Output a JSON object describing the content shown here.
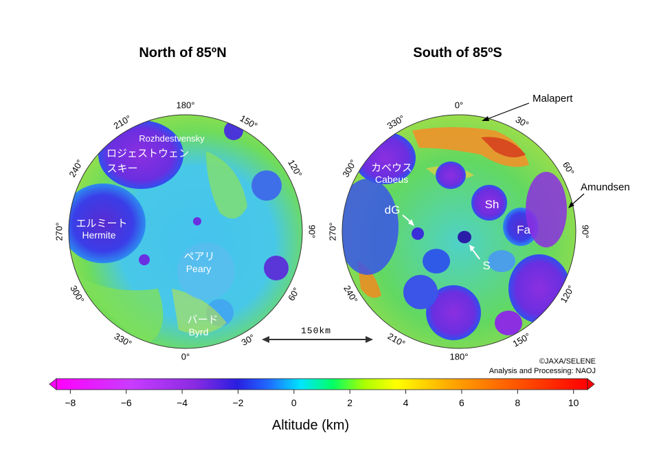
{
  "north": {
    "title": "North of 85ºN",
    "degrees": [
      {
        "label": "180°",
        "angle": 0
      },
      {
        "label": "150°",
        "angle": 30
      },
      {
        "label": "120°",
        "angle": 60
      },
      {
        "label": "90°",
        "angle": 90
      },
      {
        "label": "60°",
        "angle": 120
      },
      {
        "label": "30°",
        "angle": 150
      },
      {
        "label": "0°",
        "angle": 180
      },
      {
        "label": "330°",
        "angle": 210
      },
      {
        "label": "300°",
        "angle": 240
      },
      {
        "label": "270°",
        "angle": 270
      },
      {
        "label": "240°",
        "angle": 300
      },
      {
        "label": "210°",
        "angle": 330
      }
    ],
    "features": {
      "rozhdestvensky_en": "Rozhdestvensky",
      "rozhdestvensky_ja1": "ロジェストウェン",
      "rozhdestvensky_ja2": "スキー",
      "hermite_ja": "エルミート",
      "hermite_en": "Hermite",
      "peary_ja": "ペアリ",
      "peary_en": "Peary",
      "byrd_ja": "バード",
      "byrd_en": "Byrd"
    }
  },
  "south": {
    "title": "South of 85ºS",
    "degrees": [
      {
        "label": "0°",
        "angle": 0
      },
      {
        "label": "30°",
        "angle": 30
      },
      {
        "label": "60°",
        "angle": 60
      },
      {
        "label": "90°",
        "angle": 90
      },
      {
        "label": "120°",
        "angle": 120
      },
      {
        "label": "150°",
        "angle": 150
      },
      {
        "label": "180°",
        "angle": 180
      },
      {
        "label": "210°",
        "angle": 210
      },
      {
        "label": "240°",
        "angle": 240
      },
      {
        "label": "270°",
        "angle": 270
      },
      {
        "label": "300°",
        "angle": 300
      },
      {
        "label": "330°",
        "angle": 330
      }
    ],
    "features": {
      "cabeus_ja": "カベウス",
      "cabeus_en": "Cabeus",
      "dg": "dG",
      "sh": "Sh",
      "fa": "Fa",
      "s": "S"
    },
    "callouts": {
      "malapert": "Malapert",
      "amundsen": "Amundsen"
    }
  },
  "scale_bar": {
    "label": "150km"
  },
  "credit": {
    "line1": "©JAXA/SELENE",
    "line2": "Analysis and Processing: NAOJ"
  },
  "colorbar": {
    "min": -8.5,
    "max": 10.5,
    "ticks": [
      "-8",
      "-6",
      "-4",
      "-2",
      "0",
      "2",
      "4",
      "6",
      "8",
      "10"
    ],
    "tick_values": [
      -8,
      -6,
      -4,
      -2,
      0,
      2,
      4,
      6,
      8,
      10
    ],
    "label": "Altitude (km)",
    "colors": [
      "#ff00ff",
      "#cc33ff",
      "#8a2be2",
      "#3b1fd6",
      "#1f3fff",
      "#00c8ff",
      "#00ff88",
      "#66ff00",
      "#ffff00",
      "#ffaa00",
      "#ff5500",
      "#ff0000"
    ],
    "left_arrow_color": "#ff00ff",
    "right_arrow_color": "#ff0000"
  },
  "colors": {
    "low": "#4b2bd8",
    "mid": "#3fc8f0",
    "plain": "#62e05a",
    "high": "#f08a20"
  }
}
